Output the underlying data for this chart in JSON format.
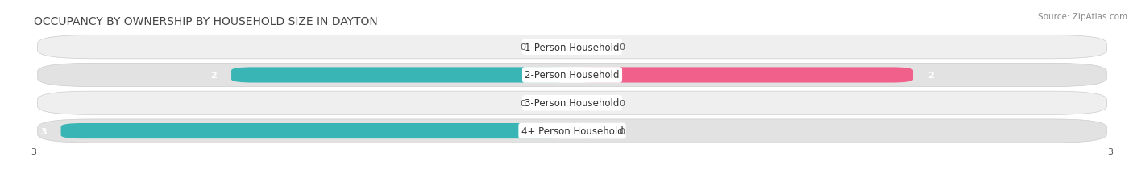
{
  "title": "OCCUPANCY BY OWNERSHIP BY HOUSEHOLD SIZE IN DAYTON",
  "source": "Source: ZipAtlas.com",
  "categories": [
    "1-Person Household",
    "2-Person Household",
    "3-Person Household",
    "4+ Person Household"
  ],
  "owner_values": [
    0,
    2,
    0,
    3
  ],
  "renter_values": [
    0,
    2,
    0,
    0
  ],
  "owner_color_full": "#3ab5b5",
  "owner_color_small": "#7dd4d4",
  "renter_color_full": "#f0608a",
  "renter_color_small": "#f4a0bb",
  "row_bg_color_odd": "#efefef",
  "row_bg_color_even": "#e2e2e2",
  "xlim_left": -3,
  "xlim_right": 3,
  "title_fontsize": 10,
  "source_fontsize": 7.5,
  "tick_fontsize": 8,
  "bar_label_fontsize": 8,
  "category_fontsize": 8.5
}
